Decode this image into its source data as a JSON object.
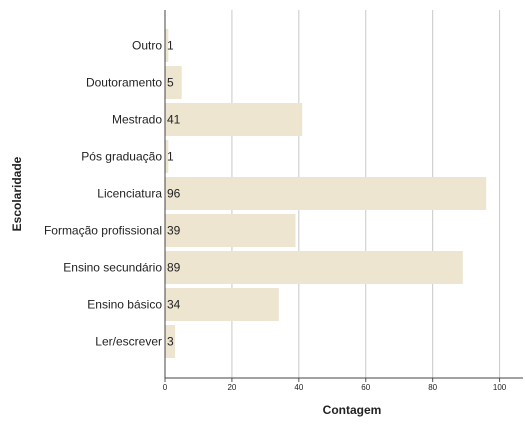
{
  "chart_data": {
    "type": "barh",
    "xlabel": "Contagem",
    "ylabel": "Escolaridade",
    "categories": [
      "Outro",
      "Doutoramento",
      "Mestrado",
      "Pós graduação",
      "Licenciatura",
      "Formação profissional",
      "Ensino secundário",
      "Ensino básico",
      "Ler/escrever"
    ],
    "values": [
      1,
      5,
      41,
      1,
      96,
      39,
      89,
      34,
      3
    ],
    "color": "#ede5d0",
    "xlim": [
      0,
      107
    ],
    "xticks": [
      0,
      20,
      40,
      60,
      80,
      100
    ],
    "grid": true
  }
}
